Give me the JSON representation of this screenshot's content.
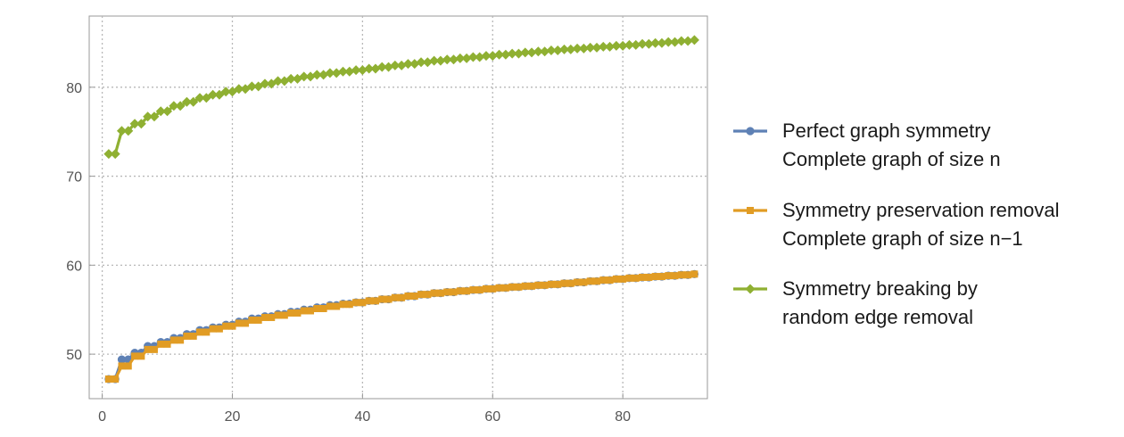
{
  "chart_data": {
    "type": "line",
    "title": "",
    "xlabel": "",
    "ylabel": "",
    "xlim": [
      -2,
      93
    ],
    "ylim": [
      45,
      88
    ],
    "xticks": [
      0,
      20,
      40,
      60,
      80
    ],
    "yticks": [
      50,
      60,
      70,
      80
    ],
    "grid": true,
    "legend_position": "right",
    "series": [
      {
        "name": "Perfect graph symmetry",
        "name_line2": "Complete graph of size n",
        "color": "#5e81b5",
        "marker": "circle",
        "x_start": 1,
        "x_end": 91,
        "y_model": "staircase",
        "anchor_points": [
          [
            1,
            47.2
          ],
          [
            3,
            49.4
          ],
          [
            7,
            50.9
          ],
          [
            11,
            51.8
          ],
          [
            15,
            52.7
          ],
          [
            19,
            53.3
          ],
          [
            23,
            54.0
          ],
          [
            27,
            54.5
          ],
          [
            31,
            55.0
          ],
          [
            35,
            55.5
          ],
          [
            40,
            55.9
          ],
          [
            50,
            56.8
          ],
          [
            60,
            57.4
          ],
          [
            70,
            57.9
          ],
          [
            80,
            58.5
          ],
          [
            91,
            59.0
          ]
        ]
      },
      {
        "name": "Symmetry preservation removal",
        "name_line2": "Complete graph of size n−1",
        "color": "#e19c24",
        "marker": "square",
        "x_start": 1,
        "x_end": 91,
        "y_model": "staircase",
        "anchor_points": [
          [
            1,
            47.2
          ],
          [
            4,
            49.4
          ],
          [
            8,
            50.9
          ],
          [
            12,
            51.8
          ],
          [
            16,
            52.7
          ],
          [
            20,
            53.3
          ],
          [
            24,
            54.0
          ],
          [
            28,
            54.5
          ],
          [
            32,
            55.0
          ],
          [
            36,
            55.5
          ],
          [
            40,
            55.9
          ],
          [
            50,
            56.8
          ],
          [
            60,
            57.4
          ],
          [
            70,
            57.9
          ],
          [
            80,
            58.5
          ],
          [
            91,
            59.0
          ]
        ]
      },
      {
        "name": "Symmetry breaking by",
        "name_line2": "random edge removal",
        "color": "#8fb032",
        "marker": "diamond",
        "x_start": 1,
        "x_end": 91,
        "y_model": "staircase",
        "anchor_points": [
          [
            1,
            72.5
          ],
          [
            3,
            75.1
          ],
          [
            7,
            76.7
          ],
          [
            11,
            77.9
          ],
          [
            15,
            78.8
          ],
          [
            19,
            79.5
          ],
          [
            23,
            80.1
          ],
          [
            27,
            80.7
          ],
          [
            31,
            81.2
          ],
          [
            35,
            81.6
          ],
          [
            40,
            82.0
          ],
          [
            50,
            82.9
          ],
          [
            60,
            83.6
          ],
          [
            70,
            84.2
          ],
          [
            80,
            84.7
          ],
          [
            91,
            85.3
          ]
        ]
      }
    ]
  }
}
